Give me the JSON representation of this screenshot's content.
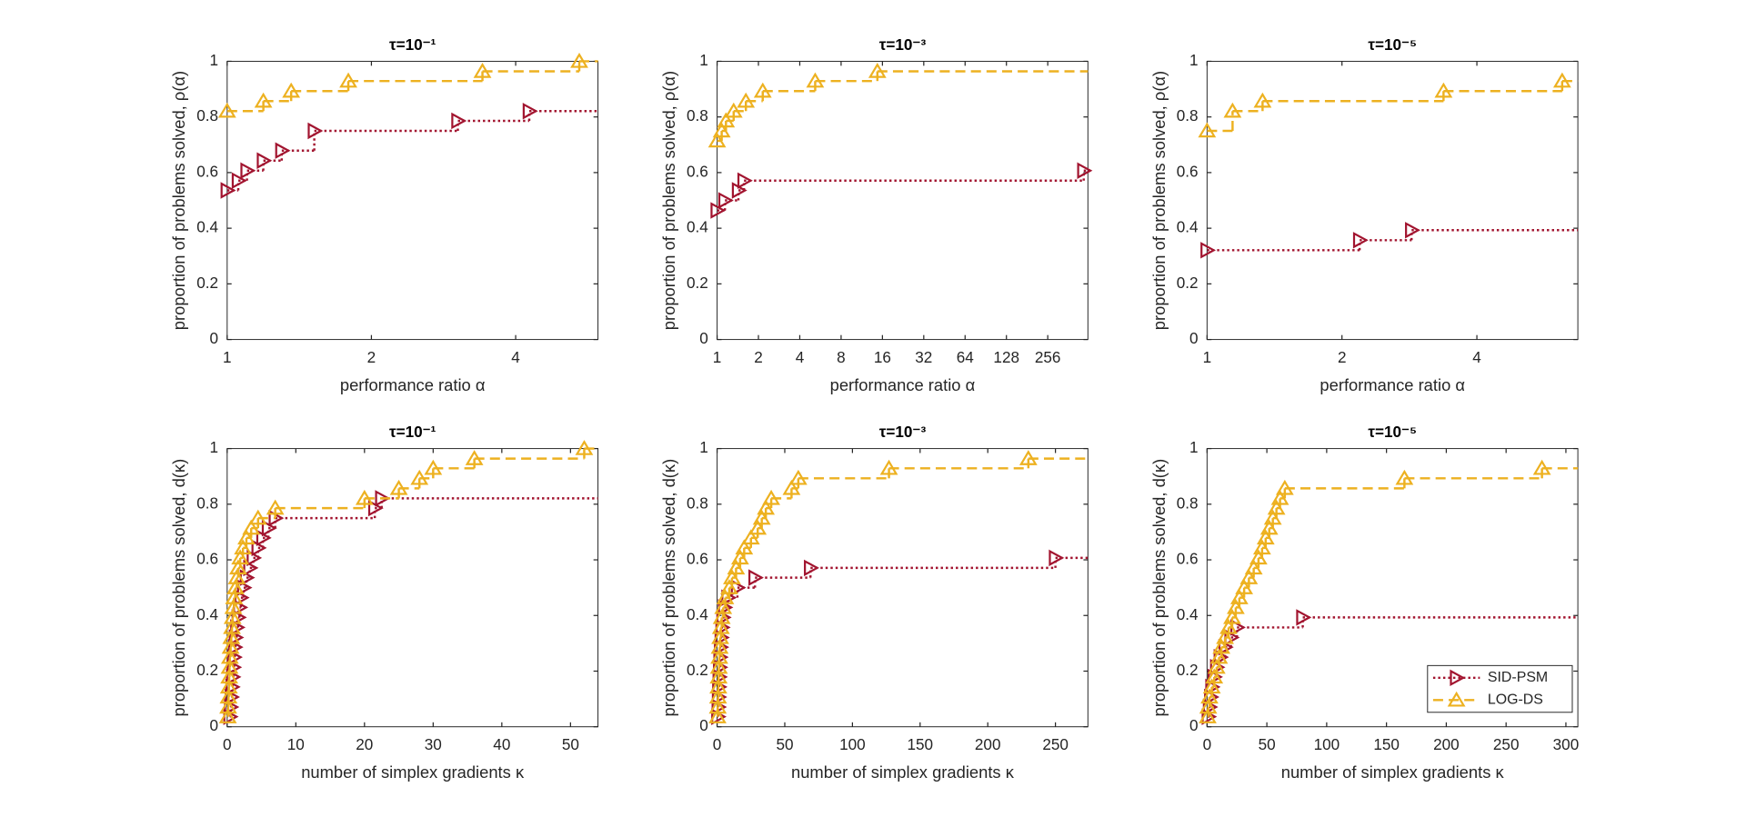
{
  "chart_data": [
    {
      "type": "line",
      "title": "τ=10⁻¹",
      "xlabel": "performance ratio α",
      "ylabel": "proportion of problems solved, ρ(α)",
      "xscale": "log",
      "xlim": [
        1,
        5.94
      ],
      "xticks": [
        1,
        2,
        4
      ],
      "ylim": [
        0,
        1
      ],
      "yticks": [
        0,
        0.2,
        0.4,
        0.6,
        0.8,
        1
      ],
      "series": [
        {
          "name": "SID-PSM",
          "color": "#a2142f",
          "marker": "triangle-right",
          "linestyle": "dotted",
          "x": [
            1,
            1.055,
            1.1,
            1.19,
            1.3,
            1.52,
            3.03,
            4.27
          ],
          "values": [
            0.536,
            0.571,
            0.607,
            0.643,
            0.679,
            0.75,
            0.786,
            0.821
          ]
        },
        {
          "name": "LOG-DS",
          "color": "#edb120",
          "marker": "triangle-up",
          "linestyle": "dashed",
          "x": [
            1,
            1.19,
            1.36,
            1.79,
            3.41,
            5.43
          ],
          "values": [
            0.821,
            0.857,
            0.893,
            0.929,
            0.964,
            1.0
          ]
        }
      ]
    },
    {
      "type": "line",
      "title": "τ=10⁻³",
      "xlabel": "performance ratio α",
      "ylabel": "proportion of problems solved, ρ(α)",
      "xscale": "log",
      "xlim": [
        1,
        502
      ],
      "xticks": [
        1,
        2,
        4,
        8,
        16,
        32,
        64,
        128,
        256
      ],
      "ylim": [
        0,
        1
      ],
      "yticks": [
        0,
        0.2,
        0.4,
        0.6,
        0.8,
        1
      ],
      "series": [
        {
          "name": "SID-PSM",
          "color": "#a2142f",
          "marker": "triangle-right",
          "linestyle": "dotted",
          "x": [
            1,
            1.14,
            1.43,
            1.57,
            468
          ],
          "values": [
            0.464,
            0.5,
            0.536,
            0.571,
            0.607
          ]
        },
        {
          "name": "LOG-DS",
          "color": "#edb120",
          "marker": "triangle-up",
          "linestyle": "dashed",
          "x": [
            1,
            1.08,
            1.16,
            1.32,
            1.62,
            2.15,
            5.18,
            14.7
          ],
          "values": [
            0.714,
            0.75,
            0.786,
            0.821,
            0.857,
            0.893,
            0.929,
            0.964
          ]
        }
      ]
    },
    {
      "type": "line",
      "title": "τ=10⁻⁵",
      "xlabel": "performance ratio α",
      "ylabel": "proportion of problems solved, ρ(α)",
      "xscale": "log",
      "xlim": [
        1,
        6.72
      ],
      "xticks": [
        1,
        2,
        4
      ],
      "ylim": [
        0,
        1
      ],
      "yticks": [
        0,
        0.2,
        0.4,
        0.6,
        0.8,
        1
      ],
      "series": [
        {
          "name": "SID-PSM",
          "color": "#a2142f",
          "marker": "triangle-right",
          "linestyle": "dotted",
          "x": [
            1,
            2.19,
            2.86
          ],
          "values": [
            0.321,
            0.357,
            0.393
          ]
        },
        {
          "name": "LOG-DS",
          "color": "#edb120",
          "marker": "triangle-up",
          "linestyle": "dashed",
          "x": [
            1,
            1.14,
            1.33,
            3.37,
            6.2
          ],
          "values": [
            0.75,
            0.821,
            0.857,
            0.893,
            0.929
          ]
        }
      ]
    },
    {
      "type": "line",
      "title": "τ=10⁻¹",
      "xlabel": "number of simplex gradients κ",
      "ylabel": "proportion of problems solved, d(κ)",
      "xlim": [
        0,
        54
      ],
      "xticks": [
        0,
        10,
        20,
        30,
        40,
        50
      ],
      "ylim": [
        0,
        1
      ],
      "yticks": [
        0,
        0.2,
        0.4,
        0.6,
        0.8,
        1
      ],
      "series": [
        {
          "name": "SID-PSM",
          "color": "#a2142f",
          "marker": "triangle-right",
          "linestyle": "dotted",
          "x": [
            0.4,
            0.5,
            0.6,
            0.7,
            0.8,
            0.9,
            1.0,
            1.1,
            1.2,
            1.4,
            1.6,
            1.8,
            2.0,
            2.4,
            2.8,
            3.3,
            3.8,
            4.5,
            5.2,
            6.0,
            7.0,
            21.5,
            22.5
          ],
          "values": [
            0.036,
            0.071,
            0.107,
            0.143,
            0.179,
            0.214,
            0.25,
            0.286,
            0.321,
            0.357,
            0.393,
            0.429,
            0.464,
            0.5,
            0.536,
            0.571,
            0.607,
            0.643,
            0.679,
            0.714,
            0.75,
            0.786,
            0.821
          ]
        },
        {
          "name": "LOG-DS",
          "color": "#edb120",
          "marker": "triangle-up",
          "linestyle": "dashed",
          "x": [
            0.1,
            0.15,
            0.2,
            0.25,
            0.3,
            0.35,
            0.4,
            0.5,
            0.6,
            0.7,
            0.8,
            0.9,
            1.0,
            1.2,
            1.4,
            1.6,
            1.9,
            2.3,
            2.8,
            3.5,
            4.5,
            7,
            20,
            25,
            28,
            30,
            36,
            52
          ],
          "values": [
            0.036,
            0.071,
            0.107,
            0.143,
            0.179,
            0.214,
            0.25,
            0.286,
            0.321,
            0.357,
            0.393,
            0.429,
            0.464,
            0.5,
            0.536,
            0.571,
            0.607,
            0.643,
            0.679,
            0.714,
            0.75,
            0.786,
            0.821,
            0.857,
            0.893,
            0.929,
            0.964,
            1.0
          ]
        }
      ]
    },
    {
      "type": "line",
      "title": "τ=10⁻³",
      "xlabel": "number of simplex gradients κ",
      "ylabel": "proportion of problems solved, d(κ)",
      "xlim": [
        0,
        274
      ],
      "xticks": [
        0,
        50,
        100,
        150,
        200,
        250
      ],
      "ylim": [
        0,
        1
      ],
      "yticks": [
        0,
        0.2,
        0.4,
        0.6,
        0.8,
        1
      ],
      "series": [
        {
          "name": "SID-PSM",
          "color": "#a2142f",
          "marker": "triangle-right",
          "linestyle": "dotted",
          "x": [
            0.5,
            0.8,
            1,
            1.2,
            1.5,
            1.8,
            2.1,
            2.5,
            3,
            3.6,
            4.3,
            5.5,
            8,
            15,
            28,
            69,
            250
          ],
          "values": [
            0.036,
            0.071,
            0.107,
            0.143,
            0.179,
            0.214,
            0.25,
            0.286,
            0.321,
            0.357,
            0.393,
            0.429,
            0.464,
            0.5,
            0.536,
            0.571,
            0.607
          ]
        },
        {
          "name": "LOG-DS",
          "color": "#edb120",
          "marker": "triangle-up",
          "linestyle": "dashed",
          "x": [
            0.3,
            0.5,
            0.7,
            0.9,
            1.1,
            1.3,
            1.6,
            1.9,
            2.3,
            2.8,
            3.4,
            4.5,
            6,
            9,
            11,
            14,
            17,
            20,
            25,
            30,
            33,
            36,
            40,
            55,
            60,
            127,
            230
          ],
          "values": [
            0.036,
            0.071,
            0.107,
            0.143,
            0.179,
            0.214,
            0.25,
            0.286,
            0.321,
            0.357,
            0.393,
            0.429,
            0.464,
            0.5,
            0.536,
            0.571,
            0.607,
            0.643,
            0.679,
            0.714,
            0.75,
            0.786,
            0.821,
            0.857,
            0.893,
            0.929,
            0.964
          ]
        }
      ]
    },
    {
      "type": "line",
      "title": "τ=10⁻⁵",
      "xlabel": "number of simplex gradients κ",
      "ylabel": "proportion of problems solved, d(κ)",
      "xlim": [
        0,
        310
      ],
      "xticks": [
        0,
        50,
        100,
        150,
        200,
        250,
        300
      ],
      "ylim": [
        0,
        1
      ],
      "yticks": [
        0,
        0.2,
        0.4,
        0.6,
        0.8,
        1
      ],
      "legend": "lower right",
      "series": [
        {
          "name": "SID-PSM",
          "color": "#a2142f",
          "marker": "triangle-right",
          "linestyle": "dotted",
          "x": [
            1,
            2,
            3,
            4,
            6,
            8,
            11,
            15,
            20,
            25,
            80
          ],
          "values": [
            0.036,
            0.071,
            0.107,
            0.143,
            0.179,
            0.214,
            0.25,
            0.286,
            0.321,
            0.357,
            0.393
          ]
        },
        {
          "name": "LOG-DS",
          "color": "#edb120",
          "marker": "triangle-up",
          "linestyle": "dashed",
          "x": [
            0.5,
            1,
            2,
            4,
            6,
            8,
            10,
            12,
            15,
            18,
            21,
            24,
            27,
            31,
            35,
            39,
            43,
            46,
            49,
            52,
            55,
            58,
            61,
            65,
            165,
            280
          ],
          "values": [
            0.036,
            0.071,
            0.107,
            0.143,
            0.179,
            0.214,
            0.25,
            0.286,
            0.321,
            0.357,
            0.393,
            0.429,
            0.464,
            0.5,
            0.536,
            0.571,
            0.607,
            0.643,
            0.679,
            0.714,
            0.75,
            0.786,
            0.821,
            0.857,
            0.893,
            0.929
          ]
        }
      ]
    }
  ]
}
